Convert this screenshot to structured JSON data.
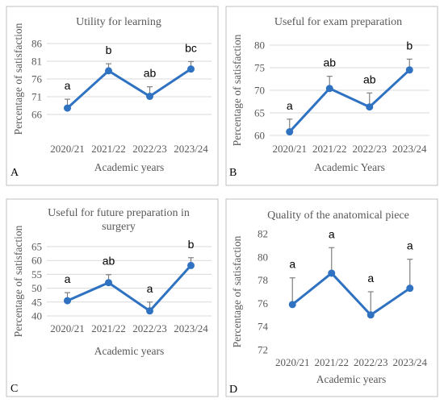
{
  "chart_data": [
    {
      "type": "line",
      "title": "Utility for learning",
      "title_lines": [
        "Utility for learning"
      ],
      "xlabel": "Academic years",
      "ylabel": "Percentage of satisfaction",
      "panel_label": "A",
      "categories": [
        "2020/21",
        "2021/22",
        "2022/23",
        "2023/24"
      ],
      "values": [
        67.8,
        78.3,
        71.1,
        78.8
      ],
      "errors": [
        2.5,
        2.0,
        2.7,
        2.1
      ],
      "significance_letters": [
        "a",
        "b",
        "ab",
        "bc"
      ],
      "yticks": [
        "66",
        "71",
        "76",
        "81",
        "86"
      ],
      "ylim": [
        66,
        86
      ],
      "grid": true,
      "color": "#2f72c2"
    },
    {
      "type": "line",
      "title": "Useful for exam preparation",
      "title_lines": [
        "Useful for exam preparation"
      ],
      "xlabel": "Academic Years",
      "ylabel": "Percentage of satisfaction",
      "panel_label": "B",
      "categories": [
        "2020/21",
        "2021/22",
        "2022/23",
        "2023/24"
      ],
      "values": [
        60.8,
        70.4,
        66.3,
        74.5
      ],
      "errors": [
        2.8,
        2.7,
        3.1,
        2.4
      ],
      "significance_letters": [
        "a",
        "ab",
        "ab",
        "b"
      ],
      "yticks": [
        "60",
        "65",
        "70",
        "75",
        "80"
      ],
      "ylim": [
        60,
        80
      ],
      "grid": true,
      "color": "#2f72c2"
    },
    {
      "type": "line",
      "title": "Useful for future preparation in surgery",
      "title_lines": [
        "Useful for future preparation in",
        "surgery"
      ],
      "xlabel": "Academic years",
      "ylabel": "Percentage of satisfaction",
      "panel_label": "C",
      "categories": [
        "2020/21",
        "2021/22",
        "2022/23",
        "2023/24"
      ],
      "values": [
        45.5,
        52.0,
        41.8,
        58.2
      ],
      "errors": [
        2.9,
        2.9,
        3.2,
        2.8
      ],
      "significance_letters": [
        "a",
        "ab",
        "a",
        "b"
      ],
      "yticks": [
        "40",
        "45",
        "50",
        "55",
        "60",
        "65"
      ],
      "ylim": [
        40,
        65
      ],
      "grid": true,
      "color": "#2f72c2"
    },
    {
      "type": "line",
      "title": "Quality of the anatomical piece",
      "title_lines": [
        "Quality of the anatomical piece"
      ],
      "xlabel": "Academic years",
      "ylabel": "Percentage of satisfaction",
      "panel_label": "D",
      "categories": [
        "2020/21",
        "2021/22",
        "2022/23",
        "2023/24"
      ],
      "values": [
        75.9,
        78.6,
        75.0,
        77.3
      ],
      "errors": [
        2.3,
        2.2,
        2.0,
        2.5
      ],
      "significance_letters": [
        "a",
        "a",
        "a",
        "a"
      ],
      "yticks": [
        "72",
        "74",
        "76",
        "78",
        "80",
        "82"
      ],
      "ylim": [
        72,
        82
      ],
      "grid": false,
      "color": "#2f72c2"
    }
  ]
}
